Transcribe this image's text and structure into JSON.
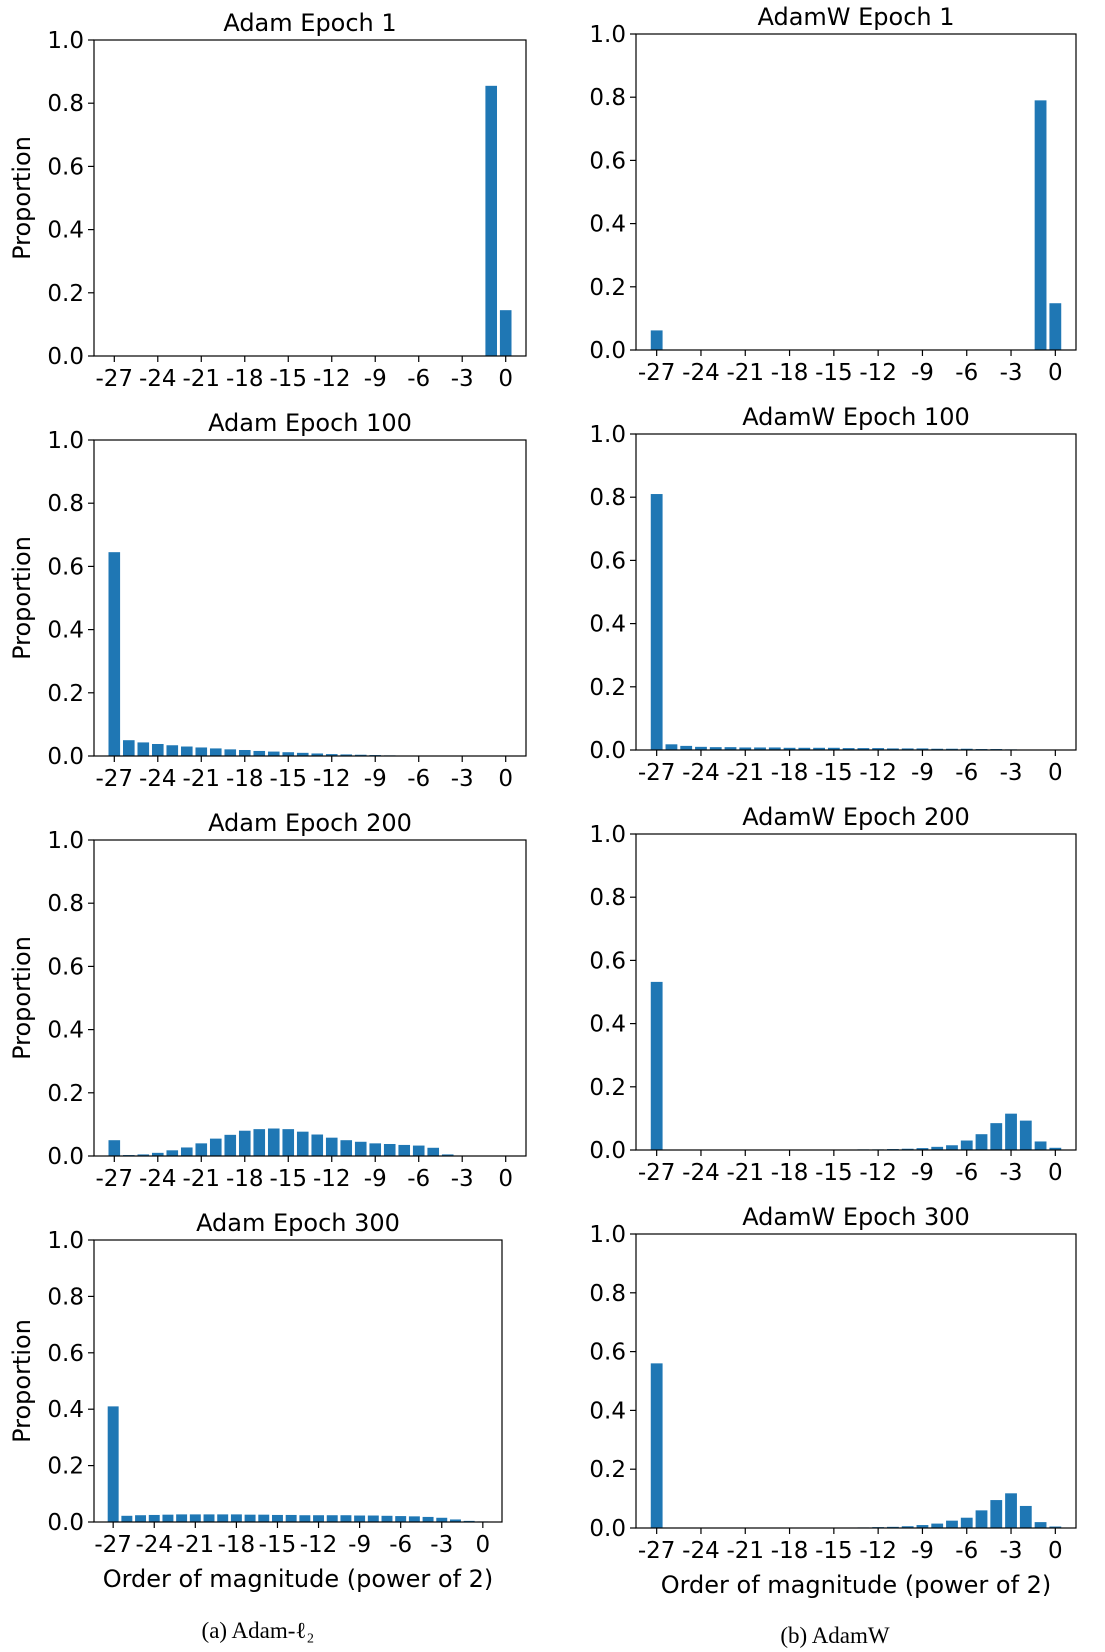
{
  "colors": {
    "bar": "#1f77b4",
    "axes": "#000000",
    "background": "#ffffff"
  },
  "captions": {
    "left": "(a) Adam-ℓ₂",
    "right": "(b) AdamW"
  },
  "chart_data": [
    {
      "type": "bar",
      "title": "Adam Epoch 1",
      "xlabel": "",
      "ylabel": "Proportion",
      "ylim": [
        0,
        1.0
      ],
      "yticks": [
        "0.0",
        "0.2",
        "0.4",
        "0.6",
        "0.8",
        "1.0"
      ],
      "xticks": [
        -27,
        -24,
        -21,
        -18,
        -15,
        -12,
        -9,
        -6,
        -3,
        0
      ],
      "x": [
        -27,
        -26,
        -25,
        -24,
        -23,
        -22,
        -21,
        -20,
        -19,
        -18,
        -17,
        -16,
        -15,
        -14,
        -13,
        -12,
        -11,
        -10,
        -9,
        -8,
        -7,
        -6,
        -5,
        -4,
        -3,
        -2,
        -1,
        0
      ],
      "values": [
        0,
        0,
        0,
        0,
        0,
        0,
        0,
        0,
        0,
        0,
        0,
        0,
        0,
        0,
        0,
        0,
        0,
        0,
        0,
        0,
        0,
        0,
        0,
        0,
        0,
        0,
        0.855,
        0.145
      ]
    },
    {
      "type": "bar",
      "title": "AdamW Epoch 1",
      "xlabel": "",
      "ylabel": "",
      "ylim": [
        0,
        1.0
      ],
      "yticks": [
        "0.0",
        "0.2",
        "0.4",
        "0.6",
        "0.8",
        "1.0"
      ],
      "xticks": [
        -27,
        -24,
        -21,
        -18,
        -15,
        -12,
        -9,
        -6,
        -3,
        0
      ],
      "x": [
        -27,
        -26,
        -25,
        -24,
        -23,
        -22,
        -21,
        -20,
        -19,
        -18,
        -17,
        -16,
        -15,
        -14,
        -13,
        -12,
        -11,
        -10,
        -9,
        -8,
        -7,
        -6,
        -5,
        -4,
        -3,
        -2,
        -1,
        0
      ],
      "values": [
        0.062,
        0,
        0,
        0,
        0,
        0,
        0,
        0,
        0,
        0,
        0,
        0,
        0,
        0,
        0,
        0,
        0,
        0,
        0,
        0,
        0,
        0,
        0,
        0,
        0,
        0,
        0.79,
        0.148
      ]
    },
    {
      "type": "bar",
      "title": "Adam Epoch 100",
      "xlabel": "",
      "ylabel": "Proportion",
      "ylim": [
        0,
        1.0
      ],
      "yticks": [
        "0.0",
        "0.2",
        "0.4",
        "0.6",
        "0.8",
        "1.0"
      ],
      "xticks": [
        -27,
        -24,
        -21,
        -18,
        -15,
        -12,
        -9,
        -6,
        -3,
        0
      ],
      "x": [
        -27,
        -26,
        -25,
        -24,
        -23,
        -22,
        -21,
        -20,
        -19,
        -18,
        -17,
        -16,
        -15,
        -14,
        -13,
        -12,
        -11,
        -10,
        -9,
        -8,
        -7,
        -6,
        -5,
        -4,
        -3,
        -2,
        -1,
        0
      ],
      "values": [
        0.645,
        0.05,
        0.043,
        0.038,
        0.034,
        0.03,
        0.027,
        0.024,
        0.021,
        0.019,
        0.016,
        0.014,
        0.012,
        0.01,
        0.008,
        0.006,
        0.005,
        0.004,
        0.003,
        0.002,
        0.001,
        0,
        0,
        0,
        0,
        0,
        0,
        0
      ]
    },
    {
      "type": "bar",
      "title": "AdamW Epoch 100",
      "xlabel": "",
      "ylabel": "",
      "ylim": [
        0,
        1.0
      ],
      "yticks": [
        "0.0",
        "0.2",
        "0.4",
        "0.6",
        "0.8",
        "1.0"
      ],
      "xticks": [
        -27,
        -24,
        -21,
        -18,
        -15,
        -12,
        -9,
        -6,
        -3,
        0
      ],
      "x": [
        -27,
        -26,
        -25,
        -24,
        -23,
        -22,
        -21,
        -20,
        -19,
        -18,
        -17,
        -16,
        -15,
        -14,
        -13,
        -12,
        -11,
        -10,
        -9,
        -8,
        -7,
        -6,
        -5,
        -4,
        -3,
        -2,
        -1,
        0
      ],
      "values": [
        0.81,
        0.018,
        0.013,
        0.01,
        0.009,
        0.009,
        0.008,
        0.008,
        0.008,
        0.007,
        0.007,
        0.007,
        0.007,
        0.006,
        0.006,
        0.006,
        0.005,
        0.005,
        0.005,
        0.004,
        0.004,
        0.004,
        0.003,
        0.003,
        0.002,
        0.001,
        0,
        0
      ]
    },
    {
      "type": "bar",
      "title": "Adam Epoch 200",
      "xlabel": "",
      "ylabel": "Proportion",
      "ylim": [
        0,
        1.0
      ],
      "yticks": [
        "0.0",
        "0.2",
        "0.4",
        "0.6",
        "0.8",
        "1.0"
      ],
      "xticks": [
        -27,
        -24,
        -21,
        -18,
        -15,
        -12,
        -9,
        -6,
        -3,
        0
      ],
      "x": [
        -27,
        -26,
        -25,
        -24,
        -23,
        -22,
        -21,
        -20,
        -19,
        -18,
        -17,
        -16,
        -15,
        -14,
        -13,
        -12,
        -11,
        -10,
        -9,
        -8,
        -7,
        -6,
        -5,
        -4,
        -3,
        -2,
        -1,
        0
      ],
      "values": [
        0.05,
        0.003,
        0.005,
        0.01,
        0.018,
        0.027,
        0.04,
        0.055,
        0.067,
        0.08,
        0.085,
        0.087,
        0.085,
        0.077,
        0.068,
        0.058,
        0.05,
        0.045,
        0.04,
        0.038,
        0.035,
        0.033,
        0.026,
        0.005,
        0.001,
        0,
        0,
        0
      ]
    },
    {
      "type": "bar",
      "title": "AdamW Epoch 200",
      "xlabel": "",
      "ylabel": "",
      "ylim": [
        0,
        1.0
      ],
      "yticks": [
        "0.0",
        "0.2",
        "0.4",
        "0.6",
        "0.8",
        "1.0"
      ],
      "xticks": [
        -27,
        -24,
        -21,
        -18,
        -15,
        -12,
        -9,
        -6,
        -3,
        0
      ],
      "x": [
        -27,
        -26,
        -25,
        -24,
        -23,
        -22,
        -21,
        -20,
        -19,
        -18,
        -17,
        -16,
        -15,
        -14,
        -13,
        -12,
        -11,
        -10,
        -9,
        -8,
        -7,
        -6,
        -5,
        -4,
        -3,
        -2,
        -1,
        0
      ],
      "values": [
        0.532,
        0,
        0,
        0,
        0,
        0,
        0,
        0,
        0,
        0,
        0,
        0,
        0,
        0,
        0.002,
        0.002,
        0.003,
        0.004,
        0.006,
        0.01,
        0.015,
        0.03,
        0.05,
        0.085,
        0.115,
        0.093,
        0.027,
        0.007
      ]
    },
    {
      "type": "bar",
      "title": "Adam Epoch 300",
      "xlabel": "Order of magnitude (power of 2)",
      "ylabel": "Proportion",
      "ylim": [
        0,
        1.0
      ],
      "yticks": [
        "0.0",
        "0.2",
        "0.4",
        "0.6",
        "0.8",
        "1.0"
      ],
      "xticks": [
        -27,
        -24,
        -21,
        -18,
        -15,
        -12,
        -9,
        -6,
        -3,
        0
      ],
      "x": [
        -27,
        -26,
        -25,
        -24,
        -23,
        -22,
        -21,
        -20,
        -19,
        -18,
        -17,
        -16,
        -15,
        -14,
        -13,
        -12,
        -11,
        -10,
        -9,
        -8,
        -7,
        -6,
        -5,
        -4,
        -3,
        -2,
        -1,
        0
      ],
      "values": [
        0.41,
        0.022,
        0.024,
        0.025,
        0.026,
        0.027,
        0.027,
        0.027,
        0.027,
        0.027,
        0.026,
        0.026,
        0.025,
        0.025,
        0.024,
        0.024,
        0.024,
        0.024,
        0.023,
        0.023,
        0.022,
        0.021,
        0.02,
        0.018,
        0.015,
        0.009,
        0.004,
        0.002
      ]
    },
    {
      "type": "bar",
      "title": "AdamW Epoch 300",
      "xlabel": "Order of magnitude (power of 2)",
      "ylabel": "",
      "ylim": [
        0,
        1.0
      ],
      "yticks": [
        "0.0",
        "0.2",
        "0.4",
        "0.6",
        "0.8",
        "1.0"
      ],
      "xticks": [
        -27,
        -24,
        -21,
        -18,
        -15,
        -12,
        -9,
        -6,
        -3,
        0
      ],
      "x": [
        -27,
        -26,
        -25,
        -24,
        -23,
        -22,
        -21,
        -20,
        -19,
        -18,
        -17,
        -16,
        -15,
        -14,
        -13,
        -12,
        -11,
        -10,
        -9,
        -8,
        -7,
        -6,
        -5,
        -4,
        -3,
        -2,
        -1,
        0
      ],
      "values": [
        0.56,
        0,
        0,
        0,
        0,
        0,
        0,
        0,
        0,
        0,
        0,
        0,
        0,
        0,
        0.002,
        0.003,
        0.004,
        0.006,
        0.01,
        0.015,
        0.025,
        0.035,
        0.06,
        0.095,
        0.118,
        0.075,
        0.02,
        0.005
      ]
    }
  ]
}
